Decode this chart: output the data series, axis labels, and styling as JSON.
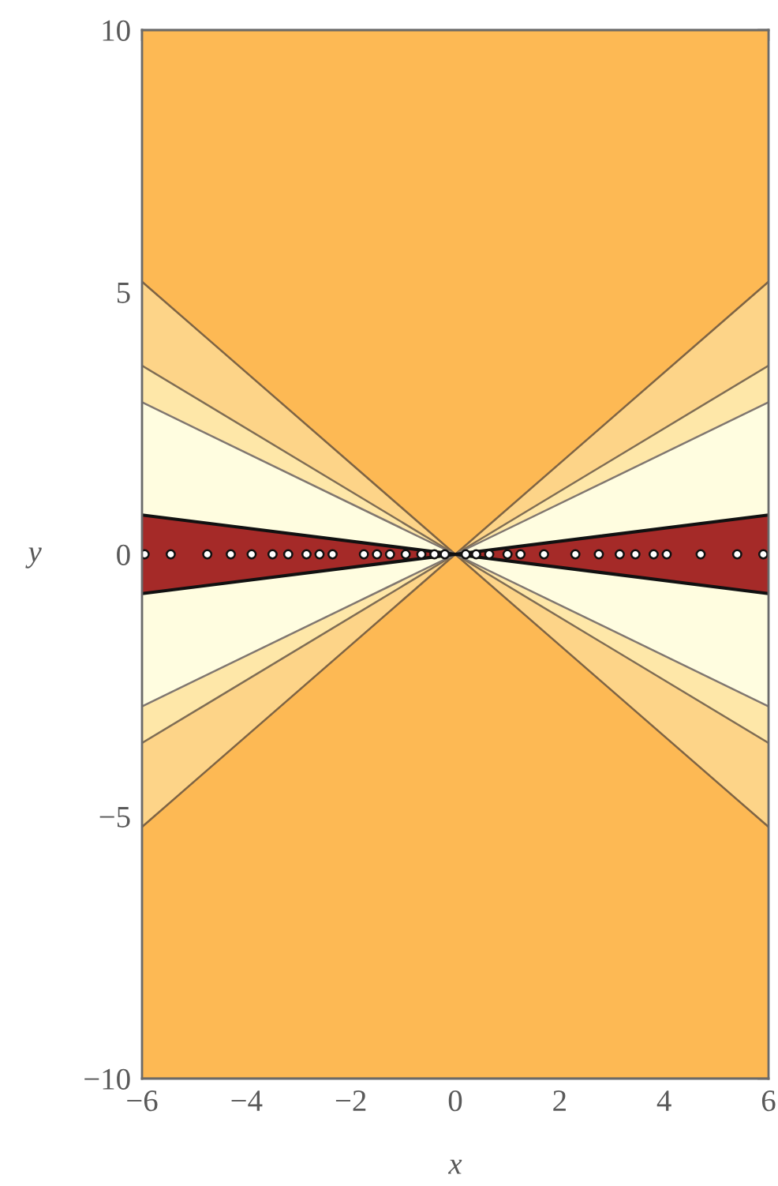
{
  "chart_data": {
    "type": "area",
    "xlabel": "x",
    "ylabel": "y",
    "xlim": [
      -6,
      6
    ],
    "ylim": [
      -10,
      10
    ],
    "xticks": [
      {
        "value": -6,
        "label": "−6"
      },
      {
        "value": -5.5,
        "label": null
      },
      {
        "value": -5,
        "label": null
      },
      {
        "value": -4.5,
        "label": null
      },
      {
        "value": -4,
        "label": "−4"
      },
      {
        "value": -3.5,
        "label": null
      },
      {
        "value": -3,
        "label": null
      },
      {
        "value": -2.5,
        "label": null
      },
      {
        "value": -2,
        "label": "−2"
      },
      {
        "value": -1.5,
        "label": null
      },
      {
        "value": -1,
        "label": null
      },
      {
        "value": -0.5,
        "label": null
      },
      0,
      {
        "value": 0.5,
        "label": null
      },
      {
        "value": 1,
        "label": null
      },
      {
        "value": 1.5,
        "label": null
      },
      2,
      {
        "value": 2.5,
        "label": null
      },
      {
        "value": 3,
        "label": null
      },
      {
        "value": 3.5,
        "label": null
      },
      4,
      {
        "value": 4.5,
        "label": null
      },
      {
        "value": 5,
        "label": null
      },
      {
        "value": 5.5,
        "label": null
      },
      6
    ],
    "yticks": [
      {
        "value": -10,
        "label": "−10"
      },
      {
        "value": -9,
        "label": null
      },
      {
        "value": -8,
        "label": null
      },
      {
        "value": -7,
        "label": null
      },
      {
        "value": -6,
        "label": null
      },
      {
        "value": -5,
        "label": "−5"
      },
      {
        "value": -4,
        "label": null
      },
      {
        "value": -3,
        "label": null
      },
      {
        "value": -2,
        "label": null
      },
      {
        "value": -1,
        "label": null
      },
      0,
      {
        "value": 1,
        "label": null
      },
      {
        "value": 2,
        "label": null
      },
      {
        "value": 3,
        "label": null
      },
      {
        "value": 4,
        "label": null
      },
      5,
      {
        "value": 6,
        "label": null
      },
      {
        "value": 7,
        "label": null
      },
      {
        "value": 8,
        "label": null
      },
      {
        "value": 9,
        "label": null
      },
      10
    ],
    "x": [
      -6,
      0,
      6
    ],
    "series": [
      {
        "color": "#fdb954",
        "values": [
          10,
          10,
          10
        ]
      },
      {
        "color": "#fdb954",
        "values": [
          -10,
          -10,
          -10
        ]
      },
      {
        "color": "#fdd488",
        "values": [
          5.2,
          0,
          5.2
        ]
      },
      {
        "color": "#fdd488",
        "values": [
          -5.2,
          0,
          -5.2
        ]
      },
      {
        "color": "#fee7a8",
        "values": [
          3.6,
          0,
          3.6
        ]
      },
      {
        "color": "#fee7a8",
        "values": [
          -3.6,
          0,
          -3.6
        ]
      },
      {
        "color": "#fffde0",
        "values": [
          2.9,
          0,
          2.9
        ]
      },
      {
        "color": "#fffde0",
        "values": [
          -2.9,
          0,
          -2.9
        ]
      },
      {
        "color": "#a52a28",
        "values": [
          0.75,
          0,
          0.75
        ]
      },
      {
        "color": "#a52a28",
        "values": [
          -0.75,
          0,
          -0.75
        ]
      },
      {
        "type": "scatter",
        "color": "#ffffff",
        "marker": "circle",
        "x": [
          -5.95,
          -5.45,
          -4.75,
          -4.3,
          -3.9,
          -3.5,
          -3.2,
          -2.85,
          -2.6,
          -2.35,
          -1.75,
          -1.5,
          -1.25,
          -0.95,
          -0.65,
          -0.4,
          -0.2,
          0.2,
          0.4,
          0.65,
          1.0,
          1.25,
          1.7,
          2.3,
          2.75,
          3.15,
          3.45,
          3.8,
          4.05,
          4.7,
          5.4,
          5.9
        ],
        "values": [
          0,
          0,
          0,
          0,
          0,
          0,
          0,
          0,
          0,
          0,
          0,
          0,
          0,
          0,
          0,
          0,
          0,
          0,
          0,
          0,
          0,
          0,
          0,
          0,
          0,
          0,
          0,
          0,
          0,
          0,
          0,
          0
        ]
      }
    ]
  }
}
